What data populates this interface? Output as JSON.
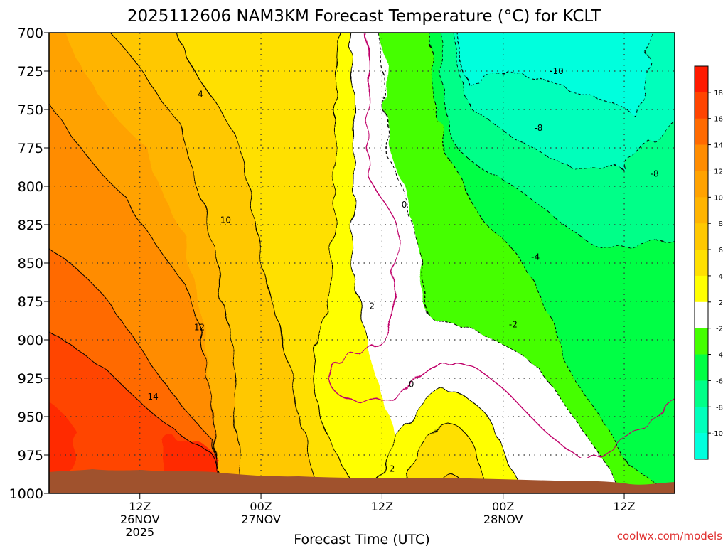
{
  "chart_data": {
    "type": "heatmap",
    "title": "2025112606 NAM3KM Forecast Temperature (°C) for KCLT",
    "xlabel": "Forecast Time (UTC)",
    "ylabel": "",
    "ylim": [
      1000,
      700
    ],
    "y_ticks": [
      "700",
      "725",
      "750",
      "775",
      "800",
      "825",
      "850",
      "875",
      "900",
      "925",
      "950",
      "975",
      "1000"
    ],
    "x_ticks": [
      {
        "hour": 12,
        "lines": [
          "12Z",
          "26NOV",
          "2025"
        ]
      },
      {
        "hour": 24,
        "lines": [
          "00Z",
          "27NOV"
        ]
      },
      {
        "hour": 36,
        "lines": [
          "12Z"
        ]
      },
      {
        "hour": 48,
        "lines": [
          "00Z",
          "28NOV"
        ]
      },
      {
        "hour": 60,
        "lines": [
          "12Z"
        ]
      }
    ],
    "grid": true,
    "credit": "coolwx.com/models",
    "colorbar": {
      "labels": [
        "18",
        "16",
        "14",
        "12",
        "10",
        "8",
        "6",
        "4",
        "2",
        "-2",
        "-4",
        "-6",
        "-8",
        "-10"
      ],
      "colors": [
        "#ff1a00",
        "#ff4400",
        "#ff6a00",
        "#ff8c00",
        "#ffa200",
        "#ffb400",
        "#ffc800",
        "#ffe000",
        "#ffff00",
        "#ffffff",
        "#44ff00",
        "#00ff44",
        "#00ff88",
        "#00ffbb",
        "#00ffdd"
      ]
    },
    "contour_labels": [
      {
        "text": "4",
        "t": 18.0,
        "p": 740
      },
      {
        "text": "10",
        "t": 20.5,
        "p": 822
      },
      {
        "text": "12",
        "t": 17.9,
        "p": 892
      },
      {
        "text": "14",
        "t": 13.3,
        "p": 937
      },
      {
        "text": "2",
        "t": 35.0,
        "p": 878
      },
      {
        "text": "0",
        "t": 38.2,
        "p": 812
      },
      {
        "text": "0",
        "t": 38.9,
        "p": 929
      },
      {
        "text": "2",
        "t": 37.0,
        "p": 984
      },
      {
        "text": "-2",
        "t": 49.0,
        "p": 890
      },
      {
        "text": "-4",
        "t": 51.2,
        "p": 846
      },
      {
        "text": "-8",
        "t": 51.5,
        "p": 762
      },
      {
        "text": "-8",
        "t": 63.0,
        "p": 792
      },
      {
        "text": "-10",
        "t": 53.3,
        "p": 725
      }
    ]
  }
}
